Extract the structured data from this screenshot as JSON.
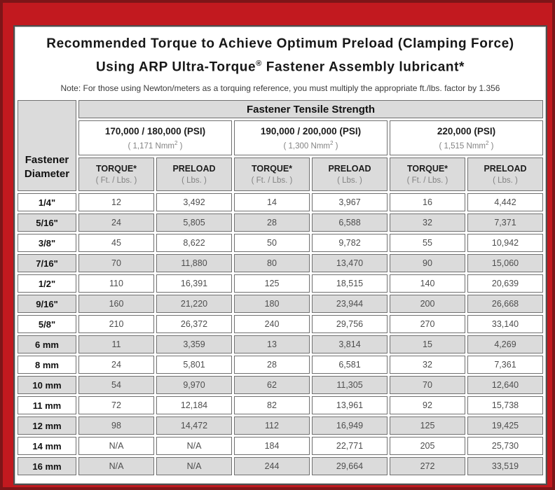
{
  "header": {
    "title_line1": "Recommended Torque to Achieve Optimum Preload (Clamping Force)",
    "title_line2_pre": "Using ARP Ultra-Torque",
    "registered_mark": "®",
    "title_line2_post": " Fastener Assembly lubricant*",
    "note": "Note: For those using Newton/meters as a torquing reference, you must multiply the appropriate ft./lbs. factor by 1.356"
  },
  "table": {
    "corner_header_line1": "Fastener",
    "corner_header_line2": "Diameter",
    "tensile_header": "Fastener Tensile Strength",
    "strength_groups": [
      {
        "psi": "170,000 / 180,000 (PSI)",
        "nmm_pre": "( 1,171 Nmm",
        "nmm_sup": "2",
        "nmm_post": " )"
      },
      {
        "psi": "190,000 / 200,000 (PSI)",
        "nmm_pre": "( 1,300 Nmm",
        "nmm_sup": "2",
        "nmm_post": " )"
      },
      {
        "psi": "220,000 (PSI)",
        "nmm_pre": "( 1,515 Nmm",
        "nmm_sup": "2",
        "nmm_post": " )"
      }
    ],
    "column_headers": {
      "torque_label": "TORQUE*",
      "torque_sub": "( Ft. / Lbs. )",
      "preload_label": "PRELOAD",
      "preload_sub": "( Lbs. )"
    },
    "rows": [
      {
        "diameter": "1/4\"",
        "values": [
          "12",
          "3,492",
          "14",
          "3,967",
          "16",
          "4,442"
        ]
      },
      {
        "diameter": "5/16\"",
        "values": [
          "24",
          "5,805",
          "28",
          "6,588",
          "32",
          "7,371"
        ]
      },
      {
        "diameter": "3/8\"",
        "values": [
          "45",
          "8,622",
          "50",
          "9,782",
          "55",
          "10,942"
        ]
      },
      {
        "diameter": "7/16\"",
        "values": [
          "70",
          "11,880",
          "80",
          "13,470",
          "90",
          "15,060"
        ]
      },
      {
        "diameter": "1/2\"",
        "values": [
          "110",
          "16,391",
          "125",
          "18,515",
          "140",
          "20,639"
        ]
      },
      {
        "diameter": "9/16\"",
        "values": [
          "160",
          "21,220",
          "180",
          "23,944",
          "200",
          "26,668"
        ]
      },
      {
        "diameter": "5/8\"",
        "values": [
          "210",
          "26,372",
          "240",
          "29,756",
          "270",
          "33,140"
        ]
      },
      {
        "diameter": "6 mm",
        "values": [
          "11",
          "3,359",
          "13",
          "3,814",
          "15",
          "4,269"
        ]
      },
      {
        "diameter": "8 mm",
        "values": [
          "24",
          "5,801",
          "28",
          "6,581",
          "32",
          "7,361"
        ]
      },
      {
        "diameter": "10 mm",
        "values": [
          "54",
          "9,970",
          "62",
          "11,305",
          "70",
          "12,640"
        ]
      },
      {
        "diameter": "11 mm",
        "values": [
          "72",
          "12,184",
          "82",
          "13,961",
          "92",
          "15,738"
        ]
      },
      {
        "diameter": "12 mm",
        "values": [
          "98",
          "14,472",
          "112",
          "16,949",
          "125",
          "19,425"
        ]
      },
      {
        "diameter": "14 mm",
        "values": [
          "N/A",
          "N/A",
          "184",
          "22,771",
          "205",
          "25,730"
        ]
      },
      {
        "diameter": "16 mm",
        "values": [
          "N/A",
          "N/A",
          "244",
          "29,664",
          "272",
          "33,519"
        ]
      }
    ],
    "colors": {
      "frame_red": "#C2191F",
      "frame_maroon": "#7D1518",
      "row_shaded": "#DBDBDB",
      "cell_border": "#707070"
    }
  },
  "chart_data": {
    "type": "table",
    "title": "Recommended Torque to Achieve Optimum Preload (Clamping Force) Using ARP Ultra-Torque® Fastener Assembly lubricant*",
    "annotation": "Note: For those using Newton/meters as a torquing reference, you must multiply the appropriate ft./lbs. factor by 1.356",
    "column_groups": [
      "Fastener Tensile Strength: 170,000 / 180,000 (PSI) ( 1,171 Nmm2 )",
      "Fastener Tensile Strength: 190,000 / 200,000 (PSI) ( 1,300 Nmm2 )",
      "Fastener Tensile Strength: 220,000 (PSI) ( 1,515 Nmm2 )"
    ],
    "columns": [
      "Fastener Diameter",
      "TORQUE* ( Ft. / Lbs. )",
      "PRELOAD ( Lbs. )",
      "TORQUE* ( Ft. / Lbs. )",
      "PRELOAD ( Lbs. )",
      "TORQUE* ( Ft. / Lbs. )",
      "PRELOAD ( Lbs. )"
    ],
    "rows": [
      [
        "1/4\"",
        "12",
        "3,492",
        "14",
        "3,967",
        "16",
        "4,442"
      ],
      [
        "5/16\"",
        "24",
        "5,805",
        "28",
        "6,588",
        "32",
        "7,371"
      ],
      [
        "3/8\"",
        "45",
        "8,622",
        "50",
        "9,782",
        "55",
        "10,942"
      ],
      [
        "7/16\"",
        "70",
        "11,880",
        "80",
        "13,470",
        "90",
        "15,060"
      ],
      [
        "1/2\"",
        "110",
        "16,391",
        "125",
        "18,515",
        "140",
        "20,639"
      ],
      [
        "9/16\"",
        "160",
        "21,220",
        "180",
        "23,944",
        "200",
        "26,668"
      ],
      [
        "5/8\"",
        "210",
        "26,372",
        "240",
        "29,756",
        "270",
        "33,140"
      ],
      [
        "6 mm",
        "11",
        "3,359",
        "13",
        "3,814",
        "15",
        "4,269"
      ],
      [
        "8 mm",
        "24",
        "5,801",
        "28",
        "6,581",
        "32",
        "7,361"
      ],
      [
        "10 mm",
        "54",
        "9,970",
        "62",
        "11,305",
        "70",
        "12,640"
      ],
      [
        "11 mm",
        "72",
        "12,184",
        "82",
        "13,961",
        "92",
        "15,738"
      ],
      [
        "12 mm",
        "98",
        "14,472",
        "112",
        "16,949",
        "125",
        "19,425"
      ],
      [
        "14 mm",
        "N/A",
        "N/A",
        "184",
        "22,771",
        "205",
        "25,730"
      ],
      [
        "16 mm",
        "N/A",
        "N/A",
        "244",
        "29,664",
        "272",
        "33,519"
      ]
    ]
  }
}
